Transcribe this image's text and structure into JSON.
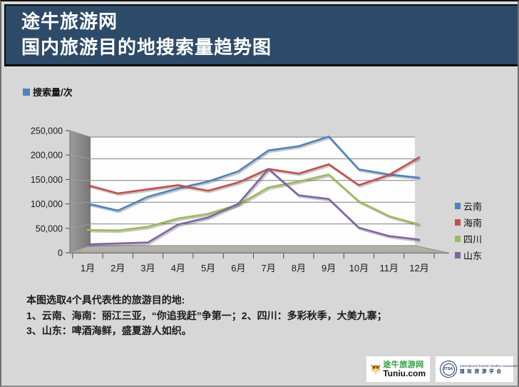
{
  "header": {
    "line1": "途牛旅游网",
    "line2": "国内旅游目的地搜索量趋势图"
  },
  "chart_data": {
    "type": "line",
    "title": "国内旅游目的地搜索量趋势图",
    "unit_label": "搜索量/次",
    "categories": [
      "1月",
      "2月",
      "3月",
      "4月",
      "5月",
      "6月",
      "7月",
      "8月",
      "9月",
      "10月",
      "11月",
      "12月"
    ],
    "y_ticks": [
      "250,000",
      "200,000",
      "150,000",
      "100,000",
      "50,000",
      "0"
    ],
    "ylim": [
      0,
      250000
    ],
    "grid": true,
    "legend_position": "right",
    "style": "3d-line",
    "series": [
      {
        "name": "云南",
        "color": "#4F81BD",
        "values": [
          100000,
          85000,
          115000,
          133000,
          148000,
          170000,
          215000,
          224000,
          245000,
          174000,
          163000,
          156000
        ]
      },
      {
        "name": "海南",
        "color": "#C0504D",
        "values": [
          140000,
          122000,
          131000,
          140000,
          128000,
          146000,
          175000,
          165000,
          185000,
          140000,
          162000,
          200000
        ]
      },
      {
        "name": "四川",
        "color": "#9BBB59",
        "values": [
          43000,
          42000,
          50000,
          68000,
          78000,
          98000,
          135000,
          148000,
          163000,
          105000,
          73000,
          55000
        ]
      },
      {
        "name": "山东",
        "color": "#8064A2",
        "values": [
          12000,
          14000,
          16000,
          55000,
          70000,
          100000,
          175000,
          118000,
          110000,
          48000,
          30000,
          22000
        ]
      }
    ]
  },
  "notes": {
    "line1": "本图选取4个具代表性的旅游目的地:",
    "line2": "1、云南、海南：丽江三亚，“你追我赶”争第一；2、四川：多彩秋季，大美九寨；",
    "line3": "3、山东：啤酒海鲜，盛夏游人如织。"
  },
  "footer": {
    "tuniu_cn": "途牛旅游网",
    "tuniu_en": "Tuniu.com",
    "itsa_abbr": "ITSA",
    "itsa_en": "International Tourism Studies Association",
    "itsa_cn": "国 际 旅 游 学 会"
  },
  "colors": {
    "header_bg": "#2d4b69",
    "page_bg": "#d7d7d7",
    "wall": "#8d8d8d",
    "floor": "#b5b4ac",
    "plot_bg": "#fdfdfd",
    "gridline": "#808080"
  }
}
